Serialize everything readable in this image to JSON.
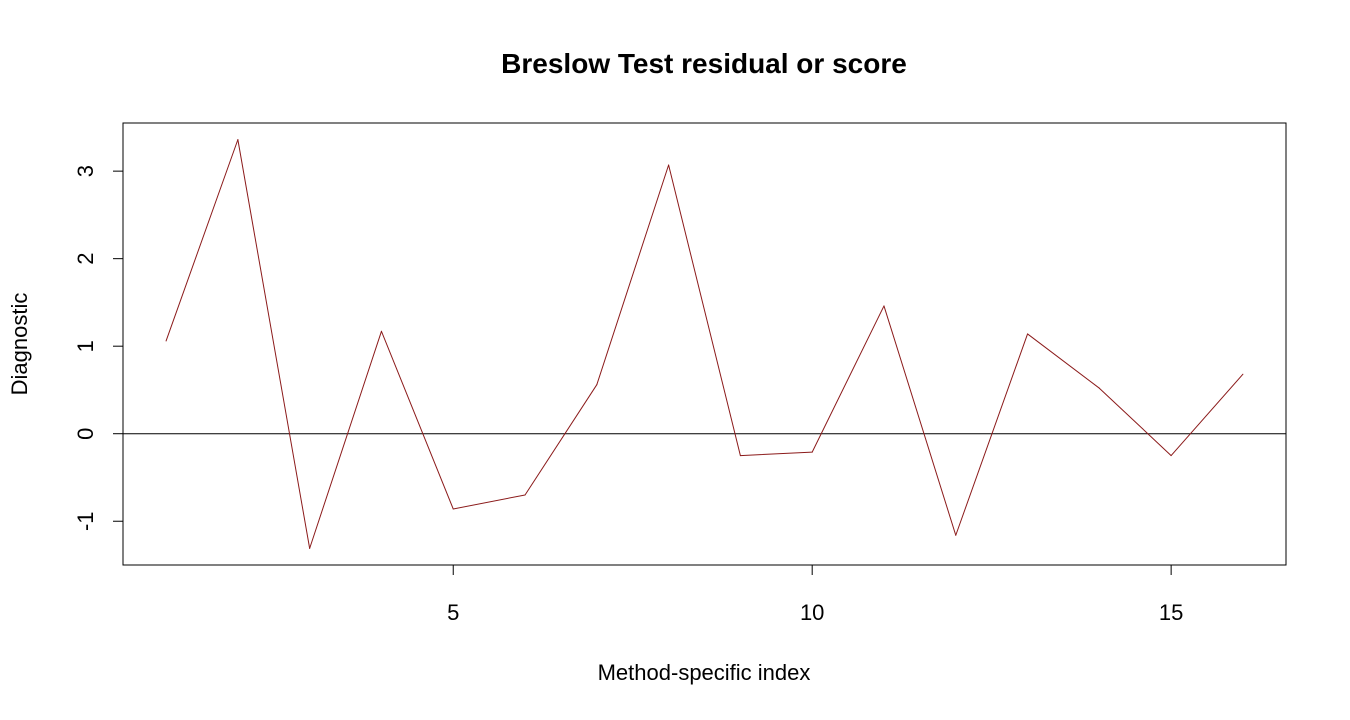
{
  "chart_data": {
    "type": "line",
    "title": "Breslow Test residual or score",
    "xlabel": "Method-specific index",
    "ylabel": "Diagnostic",
    "x": [
      1,
      2,
      3,
      4,
      5,
      6,
      7,
      8,
      9,
      10,
      11,
      12,
      13,
      14,
      15,
      16
    ],
    "series": [
      {
        "values": [
          1.06,
          3.36,
          -1.31,
          1.17,
          -0.86,
          -0.7,
          0.56,
          3.07,
          -0.25,
          -0.21,
          1.46,
          -1.16,
          1.14,
          0.52,
          -0.25,
          0.68
        ],
        "color": "#8B1A1A"
      }
    ],
    "reference_line": {
      "y": 0,
      "color": "#000000"
    },
    "xlim": [
      0.4,
      16.6
    ],
    "ylim": [
      -1.5,
      3.55
    ],
    "xticks": [
      5,
      10,
      15
    ],
    "yticks": [
      -1,
      0,
      1,
      2,
      3
    ],
    "grid": false,
    "legend": "none"
  }
}
